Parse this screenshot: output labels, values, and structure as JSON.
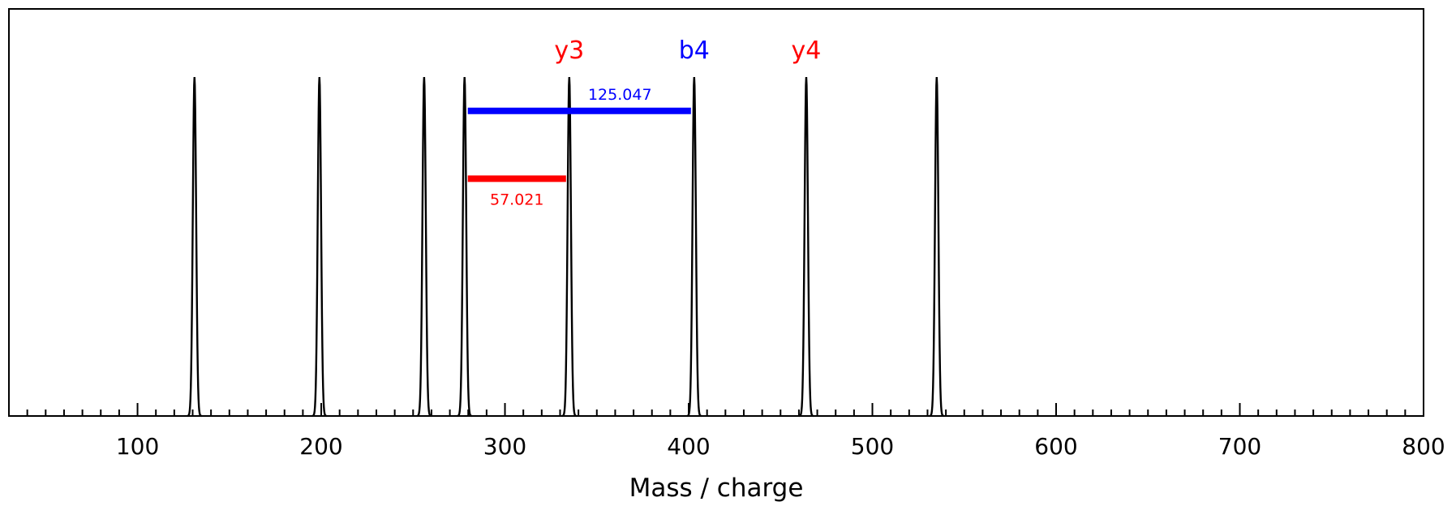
{
  "chart_data": {
    "type": "line",
    "title": "",
    "xlabel": "Mass / charge",
    "ylabel": "",
    "xlim": [
      30,
      800
    ],
    "ylim": [
      0,
      1.2
    ],
    "x_ticks": [
      100,
      200,
      300,
      400,
      500,
      600,
      700,
      800
    ],
    "minor_tick_step": 10,
    "grid": false,
    "legend": "none",
    "peaks": [
      {
        "mz": 131,
        "intensity": 1.0
      },
      {
        "mz": 199,
        "intensity": 1.0
      },
      {
        "mz": 256,
        "intensity": 1.0
      },
      {
        "mz": 278,
        "intensity": 1.0
      },
      {
        "mz": 335,
        "intensity": 1.0
      },
      {
        "mz": 403,
        "intensity": 1.0
      },
      {
        "mz": 464,
        "intensity": 1.0
      },
      {
        "mz": 535,
        "intensity": 1.0
      }
    ],
    "ion_labels": [
      {
        "text": "y3",
        "mz": 335,
        "color": "#ff0000"
      },
      {
        "text": "b4",
        "mz": 403,
        "color": "#0000ff"
      },
      {
        "text": "y4",
        "mz": 464,
        "color": "#ff0000"
      }
    ],
    "mass_differences": [
      {
        "from_mz": 278,
        "to_mz": 403,
        "label": "125.047",
        "color": "#0000ff",
        "level": 0.9,
        "label_position": "above"
      },
      {
        "from_mz": 278,
        "to_mz": 335,
        "label": "57.021",
        "color": "#ff0000",
        "level": 0.7,
        "label_position": "below"
      }
    ],
    "colors": {
      "line": "#000000",
      "b_ion": "#0000ff",
      "y_ion": "#ff0000"
    }
  }
}
